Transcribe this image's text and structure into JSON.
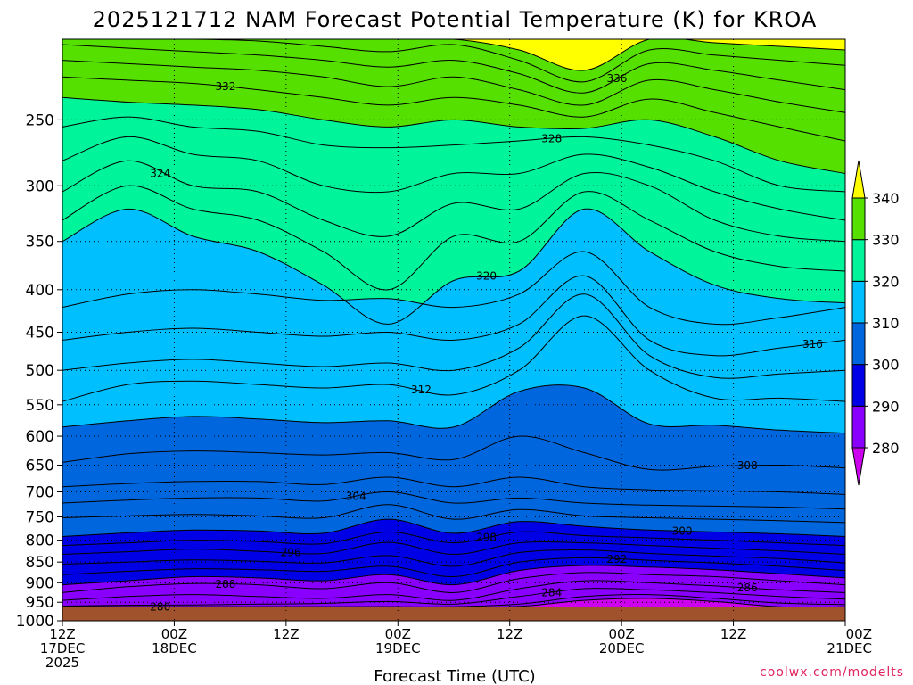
{
  "chart_data": {
    "type": "heatmap",
    "title": "2025121712 NAM Forecast Potential Temperature (K) for KROA",
    "xlabel": "Forecast Time (UTC)",
    "ylabel": "",
    "y_axis": {
      "scale": "log-pressure",
      "range": [
        1000,
        200
      ],
      "ticks": [
        250,
        300,
        350,
        400,
        450,
        500,
        550,
        600,
        650,
        700,
        750,
        800,
        850,
        900,
        950,
        1000
      ],
      "tick_labels": [
        "250",
        "300",
        "350",
        "400",
        "450",
        "500",
        "550",
        "600",
        "650",
        "700",
        "750",
        "800",
        "850",
        "900",
        "950",
        "1000"
      ]
    },
    "x_axis": {
      "range_hours": [
        0,
        84
      ],
      "ticks": [
        {
          "hour": 0,
          "line1": "12Z",
          "line2": "17DEC",
          "line3": "2025"
        },
        {
          "hour": 12,
          "line1": "00Z",
          "line2": "18DEC",
          "line3": ""
        },
        {
          "hour": 24,
          "line1": "12Z",
          "line2": "",
          "line3": ""
        },
        {
          "hour": 36,
          "line1": "00Z",
          "line2": "19DEC",
          "line3": ""
        },
        {
          "hour": 48,
          "line1": "12Z",
          "line2": "",
          "line3": ""
        },
        {
          "hour": 60,
          "line1": "00Z",
          "line2": "20DEC",
          "line3": ""
        },
        {
          "hour": 72,
          "line1": "12Z",
          "line2": "",
          "line3": ""
        },
        {
          "hour": 84,
          "line1": "00Z",
          "line2": "21DEC",
          "line3": ""
        }
      ]
    },
    "grid": "dotted",
    "colorbar": {
      "placement": "right",
      "levels": [
        280,
        290,
        300,
        310,
        320,
        330,
        340
      ],
      "colors": [
        "#cc00ee",
        "#8a00ff",
        "#0000e6",
        "#0066dd",
        "#00bfff",
        "#00f59a",
        "#55e000",
        "#ffff00"
      ]
    },
    "contour_interval": 2,
    "contours": [
      {
        "value": 280,
        "label": "280",
        "p": [
          962,
          962,
          962,
          962,
          962,
          962,
          962,
          961,
          945,
          940,
          948,
          962,
          962
        ],
        "hours": [
          0,
          7,
          14,
          21,
          28,
          35,
          42,
          49,
          56,
          63,
          70,
          77,
          84
        ]
      },
      {
        "value": 282,
        "label": "",
        "p": [
          962,
          962,
          962,
          962,
          962,
          962,
          962,
          955,
          935,
          930,
          940,
          952,
          956
        ],
        "hours": [
          0,
          7,
          14,
          21,
          28,
          35,
          42,
          49,
          56,
          63,
          70,
          77,
          84
        ]
      },
      {
        "value": 284,
        "label": "284",
        "p": [
          960,
          958,
          957,
          955,
          953,
          948,
          955,
          935,
          915,
          918,
          925,
          935,
          942
        ],
        "hours": [
          0,
          7,
          14,
          21,
          28,
          35,
          42,
          49,
          56,
          63,
          70,
          77,
          84
        ]
      },
      {
        "value": 286,
        "label": "286",
        "p": [
          945,
          935,
          930,
          935,
          940,
          930,
          945,
          915,
          895,
          900,
          908,
          918,
          925
        ],
        "hours": [
          0,
          7,
          14,
          21,
          28,
          35,
          42,
          49,
          56,
          63,
          70,
          77,
          84
        ]
      },
      {
        "value": 288,
        "label": "288",
        "p": [
          925,
          910,
          902,
          905,
          915,
          900,
          925,
          890,
          875,
          880,
          885,
          895,
          905
        ],
        "hours": [
          0,
          7,
          14,
          21,
          28,
          35,
          42,
          49,
          56,
          63,
          70,
          77,
          84
        ]
      },
      {
        "value": 290,
        "label": "",
        "p": [
          905,
          895,
          885,
          888,
          895,
          880,
          905,
          870,
          858,
          862,
          868,
          878,
          888
        ],
        "hours": [
          0,
          7,
          14,
          21,
          28,
          35,
          42,
          49,
          56,
          63,
          70,
          77,
          84
        ]
      },
      {
        "value": 292,
        "label": "292",
        "p": [
          880,
          872,
          866,
          868,
          872,
          860,
          885,
          850,
          840,
          846,
          852,
          860,
          870
        ],
        "hours": [
          0,
          7,
          14,
          21,
          28,
          35,
          42,
          49,
          56,
          63,
          70,
          77,
          84
        ]
      },
      {
        "value": 294,
        "label": "",
        "p": [
          855,
          850,
          845,
          848,
          852,
          835,
          860,
          828,
          822,
          830,
          836,
          842,
          852
        ],
        "hours": [
          0,
          7,
          14,
          21,
          28,
          35,
          42,
          49,
          56,
          63,
          70,
          77,
          84
        ]
      },
      {
        "value": 296,
        "label": "296",
        "p": [
          832,
          826,
          820,
          825,
          830,
          805,
          832,
          806,
          806,
          812,
          818,
          824,
          832
        ],
        "hours": [
          0,
          7,
          14,
          21,
          28,
          35,
          42,
          49,
          56,
          63,
          70,
          77,
          84
        ]
      },
      {
        "value": 298,
        "label": "298",
        "p": [
          812,
          806,
          800,
          803,
          808,
          782,
          806,
          782,
          790,
          795,
          800,
          806,
          812
        ],
        "hours": [
          0,
          7,
          14,
          21,
          28,
          35,
          42,
          49,
          56,
          63,
          70,
          77,
          84
        ]
      },
      {
        "value": 300,
        "label": "300",
        "p": [
          792,
          784,
          778,
          780,
          785,
          755,
          785,
          760,
          770,
          778,
          782,
          786,
          792
        ],
        "hours": [
          0,
          7,
          14,
          21,
          28,
          35,
          42,
          49,
          56,
          63,
          70,
          77,
          84
        ]
      },
      {
        "value": 302,
        "label": "",
        "p": [
          752,
          748,
          745,
          748,
          752,
          725,
          755,
          735,
          748,
          752,
          755,
          758,
          762
        ],
        "hours": [
          0,
          7,
          14,
          21,
          28,
          35,
          42,
          49,
          56,
          63,
          70,
          77,
          84
        ]
      },
      {
        "value": 304,
        "label": "304",
        "p": [
          722,
          716,
          712,
          712,
          718,
          700,
          722,
          712,
          722,
          726,
          728,
          730,
          734
        ],
        "hours": [
          0,
          7,
          14,
          21,
          28,
          35,
          42,
          49,
          56,
          63,
          70,
          77,
          84
        ]
      },
      {
        "value": 306,
        "label": "",
        "p": [
          690,
          684,
          680,
          680,
          686,
          672,
          690,
          672,
          690,
          696,
          698,
          700,
          705
        ],
        "hours": [
          0,
          7,
          14,
          21,
          28,
          35,
          42,
          49,
          56,
          63,
          70,
          77,
          84
        ]
      },
      {
        "value": 308,
        "label": "308",
        "p": [
          645,
          630,
          625,
          628,
          632,
          628,
          640,
          600,
          628,
          658,
          652,
          650,
          655
        ],
        "hours": [
          0,
          7,
          14,
          21,
          28,
          35,
          42,
          49,
          56,
          63,
          70,
          77,
          84
        ]
      },
      {
        "value": 310,
        "label": "",
        "p": [
          585,
          575,
          568,
          572,
          578,
          575,
          585,
          530,
          525,
          580,
          582,
          590,
          595
        ],
        "hours": [
          0,
          7,
          14,
          21,
          28,
          35,
          42,
          49,
          56,
          63,
          70,
          77,
          84
        ]
      },
      {
        "value": 312,
        "label": "312",
        "p": [
          545,
          520,
          515,
          520,
          525,
          520,
          535,
          500,
          430,
          500,
          540,
          540,
          545
        ],
        "hours": [
          0,
          7,
          14,
          21,
          28,
          35,
          42,
          49,
          56,
          63,
          70,
          77,
          84
        ]
      },
      {
        "value": 314,
        "label": "",
        "p": [
          500,
          490,
          485,
          490,
          495,
          490,
          500,
          470,
          405,
          480,
          510,
          505,
          500
        ],
        "hours": [
          0,
          7,
          14,
          21,
          28,
          35,
          42,
          49,
          56,
          63,
          70,
          77,
          84
        ]
      },
      {
        "value": 316,
        "label": "316",
        "p": [
          460,
          450,
          445,
          450,
          455,
          450,
          460,
          440,
          385,
          460,
          480,
          470,
          460
        ],
        "hours": [
          0,
          7,
          14,
          21,
          28,
          35,
          42,
          49,
          56,
          63,
          70,
          77,
          84
        ]
      },
      {
        "value": 318,
        "label": "",
        "p": [
          420,
          405,
          400,
          405,
          412,
          410,
          420,
          405,
          360,
          420,
          440,
          432,
          420
        ],
        "hours": [
          0,
          7,
          14,
          21,
          28,
          35,
          42,
          49,
          56,
          63,
          70,
          77,
          84
        ]
      },
      {
        "value": 320,
        "label": "320",
        "p": [
          350,
          320,
          345,
          360,
          395,
          440,
          390,
          380,
          320,
          360,
          395,
          410,
          415
        ],
        "hours": [
          0,
          7,
          14,
          21,
          28,
          35,
          42,
          49,
          56,
          63,
          70,
          77,
          84
        ]
      },
      {
        "value": 322,
        "label": "",
        "p": [
          330,
          300,
          320,
          330,
          360,
          400,
          345,
          350,
          305,
          330,
          360,
          375,
          380
        ],
        "hours": [
          0,
          7,
          14,
          21,
          28,
          35,
          42,
          49,
          56,
          63,
          70,
          77,
          84
        ]
      },
      {
        "value": 324,
        "label": "324",
        "p": [
          305,
          280,
          300,
          305,
          330,
          345,
          315,
          320,
          290,
          300,
          330,
          345,
          350
        ],
        "hours": [
          0,
          7,
          14,
          21,
          28,
          35,
          42,
          49,
          56,
          63,
          70,
          77,
          84
        ]
      },
      {
        "value": 326,
        "label": "",
        "p": [
          280,
          262,
          275,
          280,
          300,
          305,
          290,
          290,
          275,
          285,
          305,
          320,
          330
        ],
        "hours": [
          0,
          7,
          14,
          21,
          28,
          35,
          42,
          49,
          56,
          63,
          70,
          77,
          84
        ]
      },
      {
        "value": 328,
        "label": "328",
        "p": [
          255,
          248,
          255,
          258,
          268,
          270,
          268,
          265,
          262,
          268,
          280,
          300,
          305
        ],
        "hours": [
          0,
          7,
          14,
          21,
          28,
          35,
          42,
          49,
          56,
          63,
          70,
          77,
          84
        ]
      },
      {
        "value": 330,
        "label": "",
        "p": [
          235,
          238,
          240,
          243,
          250,
          255,
          250,
          255,
          256,
          250,
          262,
          280,
          290
        ],
        "hours": [
          0,
          7,
          14,
          21,
          28,
          35,
          42,
          49,
          56,
          63,
          70,
          77,
          84
        ]
      },
      {
        "value": 332,
        "label": "332",
        "p": [
          222,
          224,
          226,
          230,
          235,
          240,
          235,
          240,
          248,
          236,
          245,
          255,
          265
        ],
        "hours": [
          0,
          7,
          14,
          21,
          28,
          35,
          42,
          49,
          56,
          63,
          70,
          77,
          84
        ]
      },
      {
        "value": 334,
        "label": "",
        "p": [
          212,
          214,
          216,
          218,
          222,
          228,
          222,
          230,
          240,
          224,
          230,
          238,
          245
        ],
        "hours": [
          0,
          7,
          14,
          21,
          28,
          35,
          42,
          49,
          56,
          63,
          70,
          77,
          84
        ]
      },
      {
        "value": 336,
        "label": "336",
        "p": [
          203,
          205,
          207,
          209,
          212,
          216,
          212,
          220,
          232,
          214,
          218,
          224,
          230
        ],
        "hours": [
          0,
          7,
          14,
          21,
          28,
          35,
          42,
          49,
          56,
          63,
          70,
          77,
          84
        ]
      },
      {
        "value": 338,
        "label": "",
        "p": [
          200,
          200,
          200,
          201,
          204,
          207,
          203,
          212,
          225,
          206,
          209,
          212,
          215
        ],
        "hours": [
          0,
          7,
          14,
          21,
          28,
          35,
          42,
          49,
          56,
          63,
          70,
          77,
          84
        ]
      },
      {
        "value": 340,
        "label": "",
        "p": [
          200,
          200,
          200,
          200,
          200,
          200,
          200,
          206,
          218,
          200,
          202,
          204,
          206
        ],
        "hours": [
          0,
          7,
          14,
          21,
          28,
          35,
          42,
          49,
          56,
          63,
          70,
          77,
          84
        ]
      }
    ],
    "below_ground_pressure": 962,
    "ground_color": "#a0522d"
  },
  "watermark": "coolwx.com/modelts"
}
